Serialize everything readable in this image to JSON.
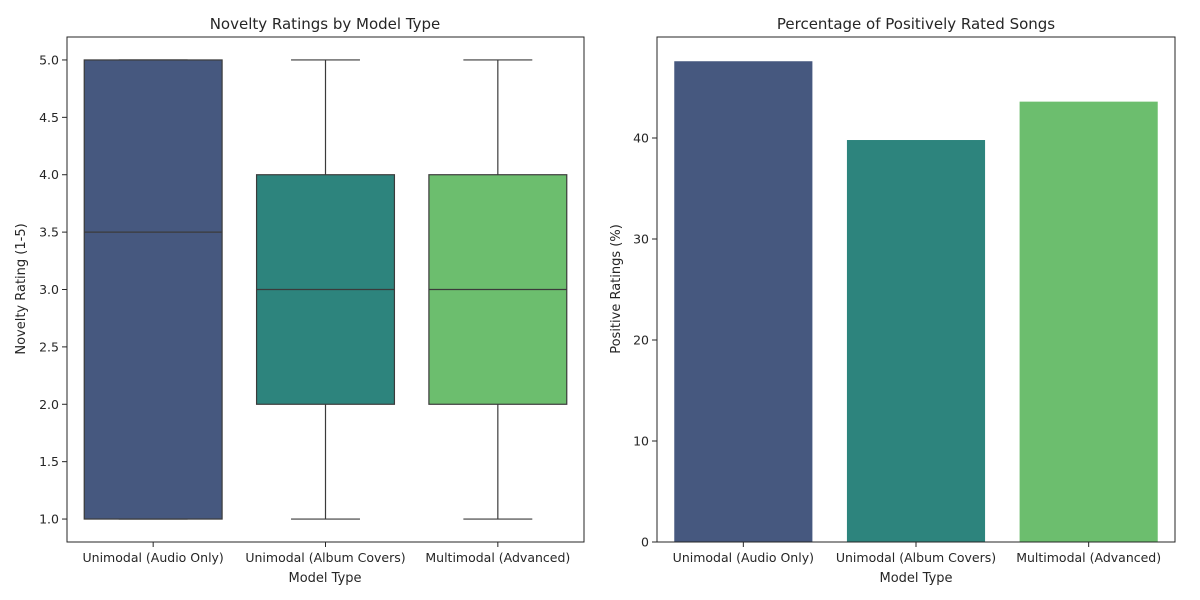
{
  "chart_data": [
    {
      "type": "boxplot",
      "title": "Novelty Ratings by Model Type",
      "xlabel": "Model Type",
      "ylabel": "Novelty Rating (1-5)",
      "categories": [
        "Unimodal (Audio Only)",
        "Unimodal (Album Covers)",
        "Multimodal (Advanced)"
      ],
      "boxes": [
        {
          "min": 1.0,
          "q1": 1.0,
          "median": 3.5,
          "q3": 5.0,
          "max": 5.0,
          "color": "#46587f"
        },
        {
          "min": 1.0,
          "q1": 2.0,
          "median": 3.0,
          "q3": 4.0,
          "max": 5.0,
          "color": "#2d847d"
        },
        {
          "min": 1.0,
          "q1": 2.0,
          "median": 3.0,
          "q3": 4.0,
          "max": 5.0,
          "color": "#6cbe6e"
        }
      ],
      "ylim": [
        0.8,
        5.2
      ],
      "yticks": [
        1.0,
        1.5,
        2.0,
        2.5,
        3.0,
        3.5,
        4.0,
        4.5,
        5.0
      ],
      "ytick_labels": [
        "1.0",
        "1.5",
        "2.0",
        "2.5",
        "3.0",
        "3.5",
        "4.0",
        "4.5",
        "5.0"
      ],
      "grid": false
    },
    {
      "type": "bar",
      "title": "Percentage of Positively Rated Songs",
      "xlabel": "Model Type",
      "ylabel": "Positive Ratings (%)",
      "categories": [
        "Unimodal (Audio Only)",
        "Unimodal (Album Covers)",
        "Multimodal (Advanced)"
      ],
      "values": [
        47.6,
        39.8,
        43.6
      ],
      "colors": [
        "#46587f",
        "#2d847d",
        "#6cbe6e"
      ],
      "ylim": [
        0,
        50
      ],
      "yticks": [
        0,
        10,
        20,
        30,
        40
      ],
      "ytick_labels": [
        "0",
        "10",
        "20",
        "30",
        "40"
      ],
      "grid": false
    }
  ]
}
